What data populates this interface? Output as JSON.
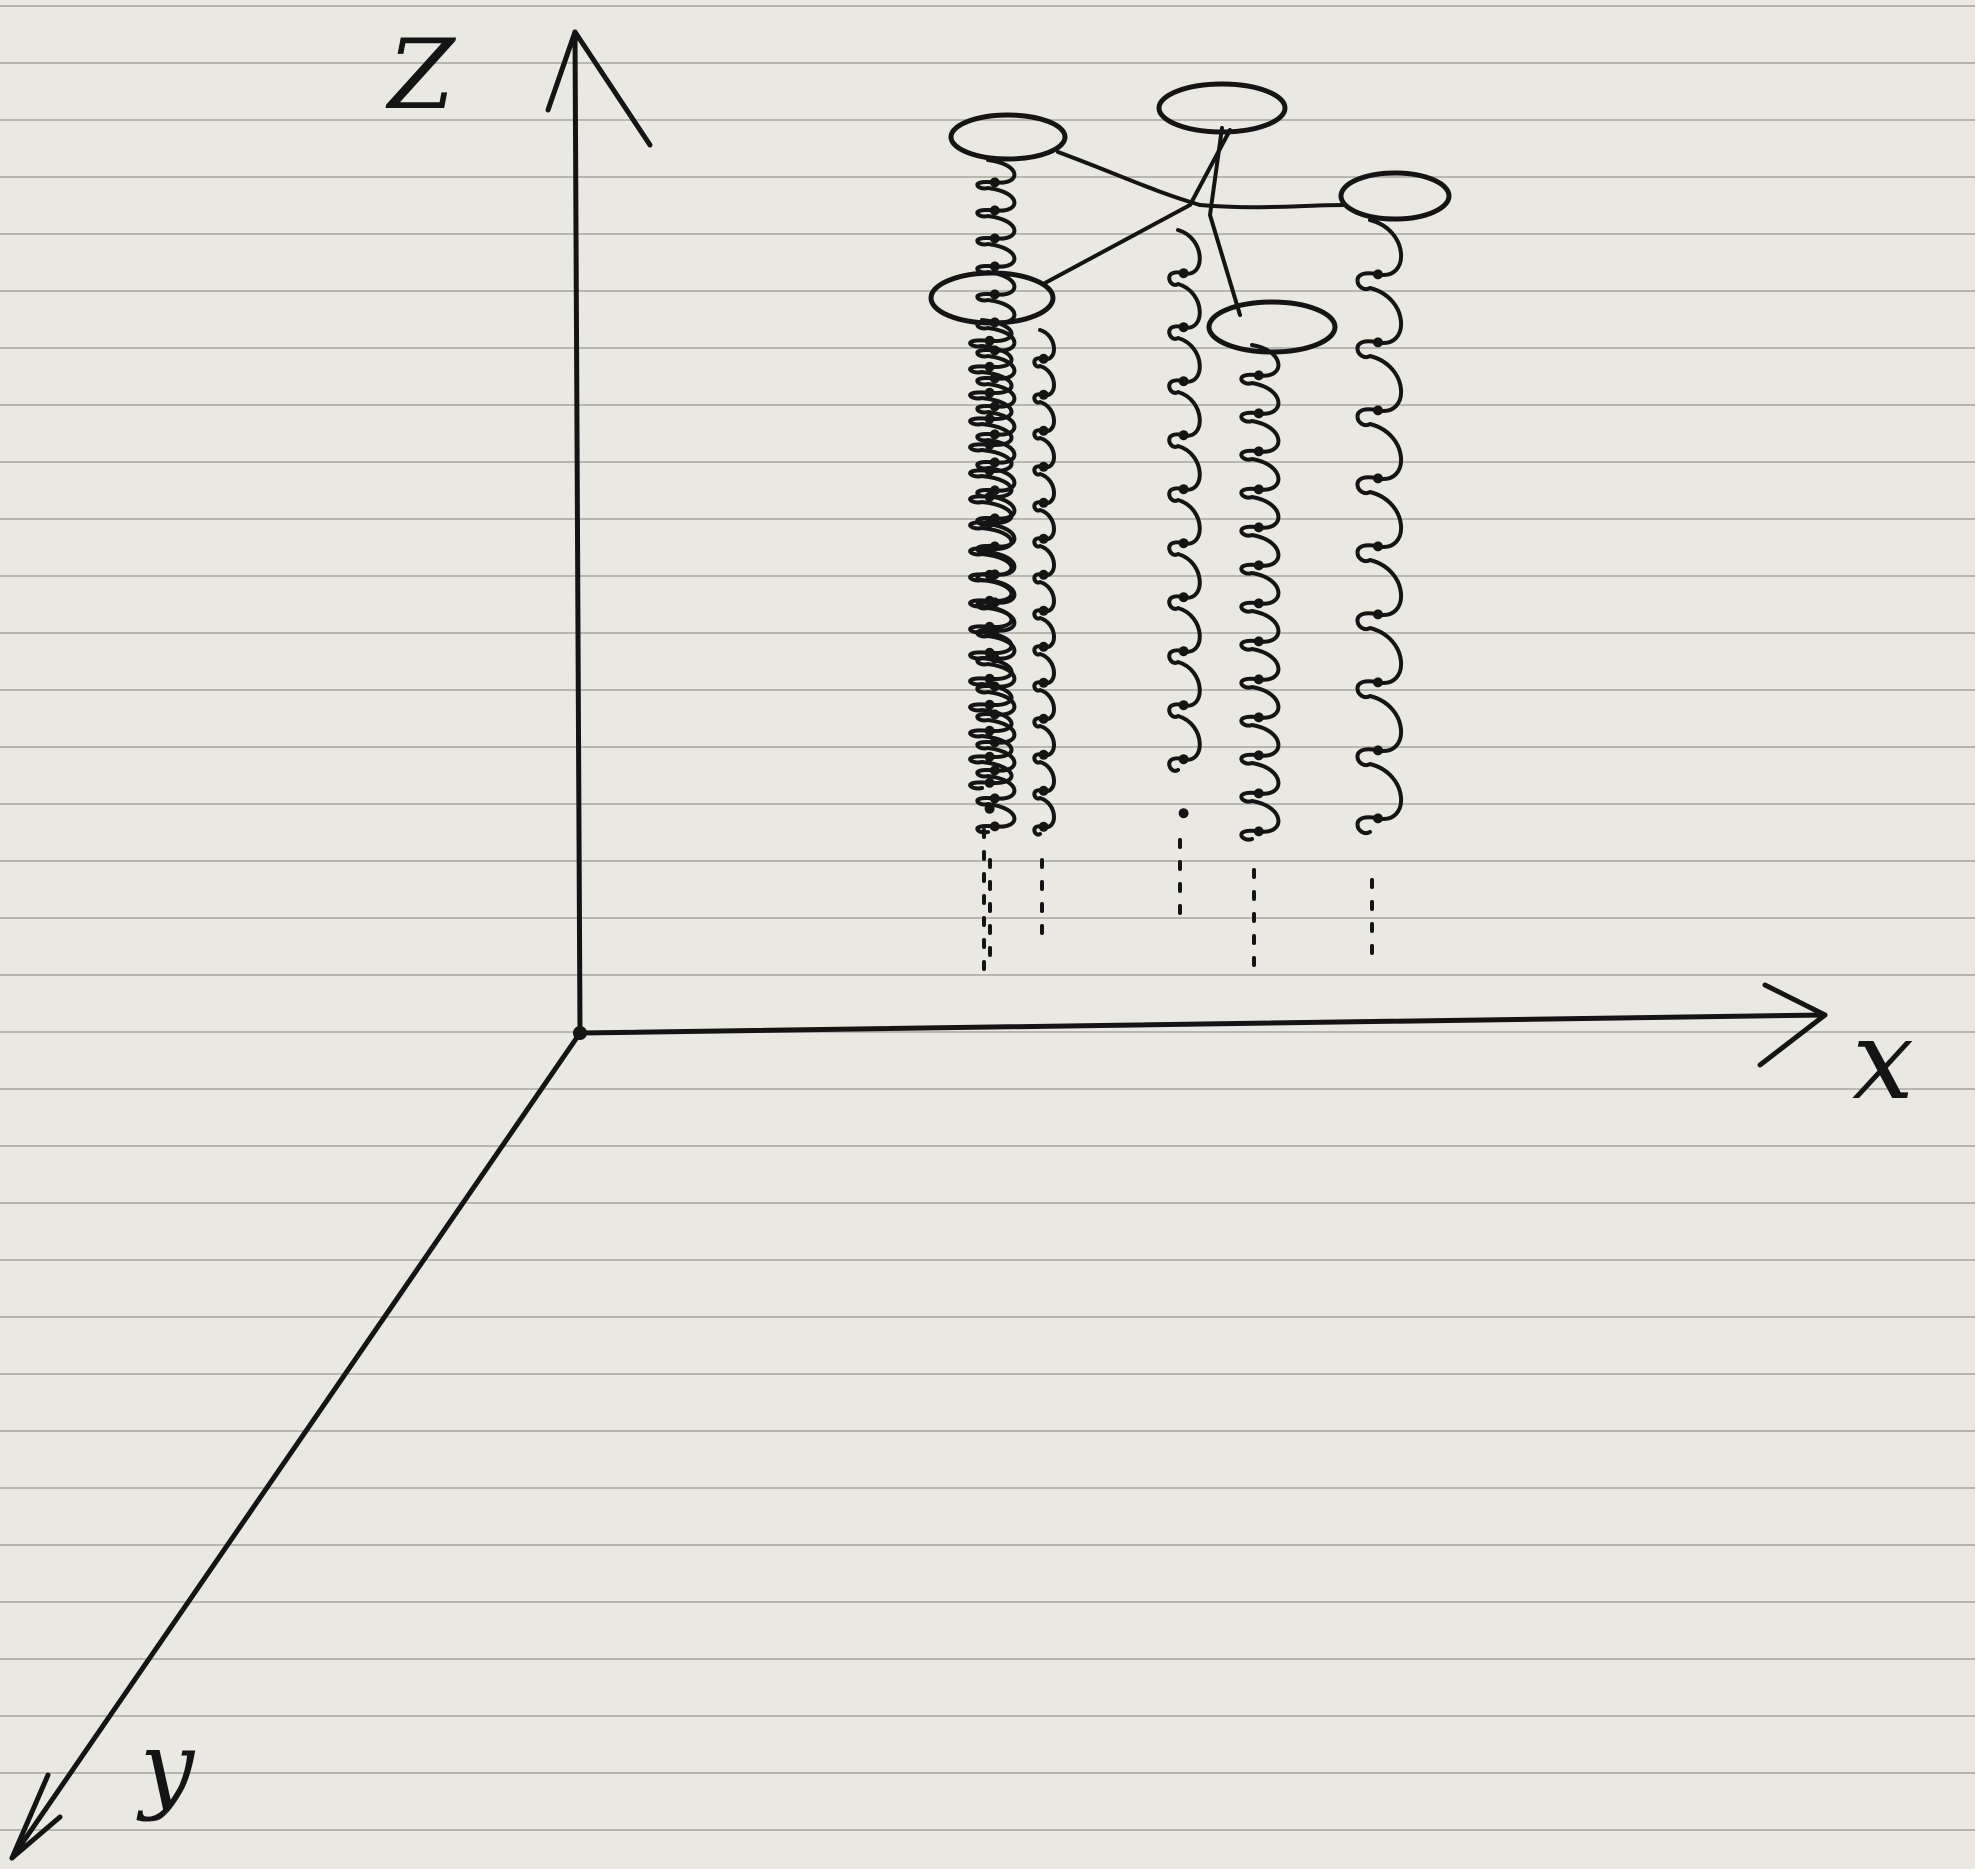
{
  "axes": {
    "z_label": "Z",
    "x_label": "x",
    "y_label": "y"
  },
  "colors": {
    "paper": "#e9e8e3",
    "ink": "#141414",
    "rule": "#b7b6b1"
  },
  "coils": {
    "count": 6,
    "style": "hand-drawn helix with dotted continuation"
  }
}
